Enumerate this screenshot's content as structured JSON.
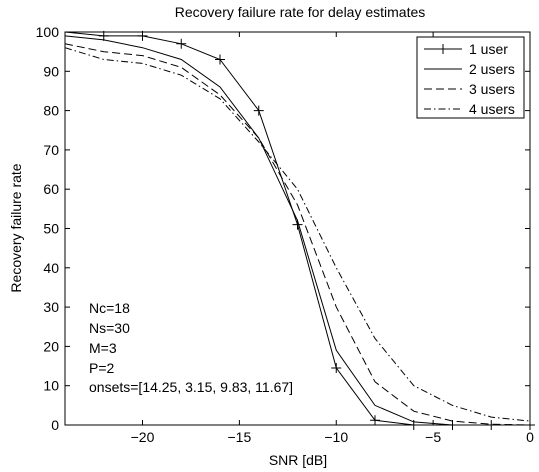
{
  "chart_data": {
    "type": "line",
    "title": "Recovery failure rate for delay estimates",
    "xlabel": "SNR [dB]",
    "ylabel": "Recovery failure rate",
    "xlim": [
      -24,
      0
    ],
    "ylim": [
      0,
      100
    ],
    "xticks": [
      -20,
      -15,
      -10,
      -5,
      0
    ],
    "xtick_labels": [
      "−20",
      "−15",
      "−10",
      "−5",
      "0"
    ],
    "yticks": [
      0,
      10,
      20,
      30,
      40,
      50,
      60,
      70,
      80,
      90,
      100
    ],
    "yticks_labels": [
      "0",
      "10",
      "20",
      "30",
      "40",
      "50",
      "60",
      "70",
      "80",
      "90",
      "100"
    ],
    "grid": false,
    "legend_position": "top-right",
    "series": [
      {
        "name": "1 user",
        "style": "solid",
        "marker": "plus",
        "x": [
          -24,
          -22,
          -20,
          -18,
          -16,
          -14,
          -12,
          -10,
          -8,
          -6,
          -4,
          -2,
          0
        ],
        "y": [
          100,
          99,
          99,
          97,
          93,
          80,
          51,
          14.5,
          1.2,
          0,
          0,
          0,
          0
        ]
      },
      {
        "name": "2 users",
        "style": "solid",
        "marker": "none",
        "x": [
          -24,
          -22,
          -20,
          -18,
          -16,
          -14,
          -12,
          -10,
          -8,
          -6,
          -4,
          -2,
          0
        ],
        "y": [
          99,
          98,
          96,
          93,
          86,
          73,
          52,
          19,
          5,
          0.8,
          0,
          0,
          0
        ]
      },
      {
        "name": "3 users",
        "style": "dashed",
        "marker": "none",
        "x": [
          -24,
          -22,
          -20,
          -18,
          -16,
          -14,
          -12,
          -10,
          -8,
          -6,
          -4,
          -2,
          0
        ],
        "y": [
          97,
          95,
          94,
          91,
          84,
          73,
          56,
          30,
          11,
          3.5,
          1,
          0.2,
          0
        ]
      },
      {
        "name": "4 users",
        "style": "dashdot",
        "marker": "none",
        "x": [
          -24,
          -22,
          -20,
          -18,
          -16,
          -14,
          -12,
          -10,
          -8,
          -6,
          -4,
          -2,
          0
        ],
        "y": [
          96,
          93,
          92,
          89,
          83,
          72,
          60,
          40,
          22,
          10,
          5,
          2,
          1
        ]
      }
    ],
    "annotations": [
      "Nc=18",
      "Ns=30",
      "M=3",
      "P=2",
      "onsets=[14.25, 3.15, 9.83, 11.67]"
    ]
  }
}
